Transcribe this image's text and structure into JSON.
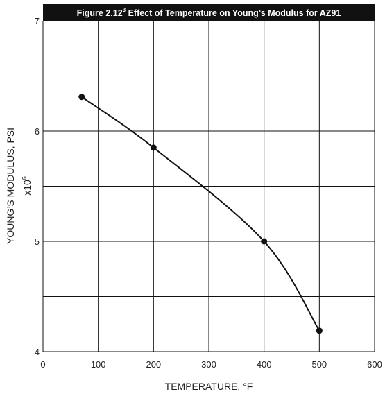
{
  "chart_data": {
    "type": "line",
    "title": {
      "prefix": "Figure 2.12",
      "superscript": "3",
      "text": " Effect of Temperature on Young’s Modulus for AZ91"
    },
    "xlabel": "TEMPERATURE, °F",
    "ylabel": "YOUNG’S MODULUS, PSI",
    "ylabel_multiplier": {
      "base": "x10",
      "exponent": "6"
    },
    "xlim": [
      0,
      600
    ],
    "ylim": [
      4,
      7
    ],
    "x_ticks": [
      "0",
      "100",
      "200",
      "300",
      "400",
      "500",
      "600"
    ],
    "y_ticks": [
      "4",
      "5",
      "6",
      "7"
    ],
    "grid": true,
    "series": [
      {
        "points": [
          {
            "x": 70,
            "y": 6.31
          },
          {
            "x": 200,
            "y": 5.85
          },
          {
            "x": 400,
            "y": 5.0
          },
          {
            "x": 500,
            "y": 4.19
          }
        ]
      }
    ],
    "colors": {
      "line": "#111111",
      "marker": "#111111",
      "grid": "#111111",
      "title_bg": "#111111"
    }
  }
}
